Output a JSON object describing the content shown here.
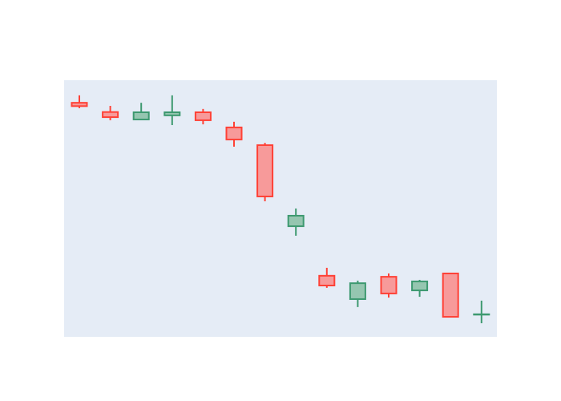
{
  "chart_data": {
    "type": "candlestick",
    "title": "",
    "xlabel": "",
    "ylabel": "",
    "grid": false,
    "legend": "none",
    "ylim": [
      0,
      100
    ],
    "colors": {
      "plot_background": "#e5ecf6",
      "increasing_line": "#3d9970",
      "increasing_fill": "#95c6b0",
      "decreasing_line": "#ff4136",
      "decreasing_fill": "#f79a9a"
    },
    "candles": [
      {
        "open": 91.2,
        "high": 94.1,
        "low": 89.1,
        "close": 89.9
      },
      {
        "open": 87.6,
        "high": 90.0,
        "low": 84.4,
        "close": 85.6
      },
      {
        "open": 84.7,
        "high": 91.2,
        "low": 84.7,
        "close": 87.5
      },
      {
        "open": 86.3,
        "high": 94.1,
        "low": 82.5,
        "close": 87.5
      },
      {
        "open": 87.5,
        "high": 88.8,
        "low": 82.8,
        "close": 84.4
      },
      {
        "open": 81.6,
        "high": 83.8,
        "low": 74.1,
        "close": 76.9
      },
      {
        "open": 74.7,
        "high": 75.6,
        "low": 52.8,
        "close": 54.7
      },
      {
        "open": 43.1,
        "high": 50.0,
        "low": 39.4,
        "close": 47.2
      },
      {
        "open": 23.8,
        "high": 26.9,
        "low": 19.1,
        "close": 20.0
      },
      {
        "open": 14.7,
        "high": 21.9,
        "low": 11.6,
        "close": 20.9
      },
      {
        "open": 23.4,
        "high": 24.7,
        "low": 15.3,
        "close": 16.9
      },
      {
        "open": 18.1,
        "high": 22.2,
        "low": 15.6,
        "close": 21.6
      },
      {
        "open": 24.7,
        "high": 24.7,
        "low": 7.5,
        "close": 7.8
      },
      {
        "open": 8.8,
        "high": 14.1,
        "low": 5.3,
        "close": 8.8
      }
    ]
  }
}
